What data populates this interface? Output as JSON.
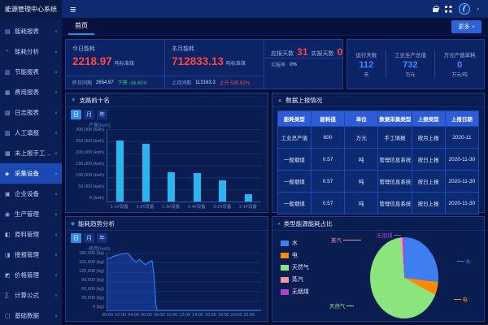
{
  "app": {
    "title": "能源管理中心系统"
  },
  "topbar": {
    "hamburger": "≡"
  },
  "tabbar": {
    "active_tab": "首页",
    "more_button": "更多"
  },
  "sidebar": {
    "chevron": "∨",
    "items": [
      {
        "label": "能耗报表",
        "icon": "energy-report-icon",
        "glyph": "▤",
        "active": false
      },
      {
        "label": "能耗分析",
        "icon": "energy-analysis-icon",
        "glyph": "◔",
        "active": false
      },
      {
        "label": "节能报表",
        "icon": "saving-report-icon",
        "glyph": "▥",
        "active": false
      },
      {
        "label": "费用报表",
        "icon": "cost-report-icon",
        "glyph": "▦",
        "active": false
      },
      {
        "label": "日志报表",
        "icon": "log-report-icon",
        "glyph": "▧",
        "active": false
      },
      {
        "label": "人工填报",
        "icon": "manual-fill-icon",
        "glyph": "▨",
        "active": false
      },
      {
        "label": "未上报手工录入",
        "icon": "manual-entry-icon",
        "glyph": "▩",
        "active": false
      },
      {
        "label": "采集设备",
        "icon": "collect-device-icon",
        "glyph": "◈",
        "active": true
      },
      {
        "label": "企业设备",
        "icon": "enterprise-device-icon",
        "glyph": "▣",
        "active": false
      },
      {
        "label": "生产管理",
        "icon": "production-icon",
        "glyph": "◉",
        "active": false
      },
      {
        "label": "原料管理",
        "icon": "material-icon",
        "glyph": "◧",
        "active": false
      },
      {
        "label": "接报管理",
        "icon": "report-manage-icon",
        "glyph": "◨",
        "active": false
      },
      {
        "label": "价格管理",
        "icon": "price-icon",
        "glyph": "◩",
        "active": false
      },
      {
        "label": "计算公式",
        "icon": "formula-icon",
        "glyph": "∑",
        "active": false
      },
      {
        "label": "基础数据",
        "icon": "base-data-icon",
        "glyph": "▢",
        "active": false
      }
    ]
  },
  "stats": {
    "today": {
      "label": "今日能耗",
      "value": "2218.97",
      "unit": "吨标准煤",
      "sub_label": "昨日同期",
      "sub_value": "2654.97",
      "trend_label": "下降 -16.42%"
    },
    "month": {
      "label": "本月能耗",
      "value": "712833.13",
      "unit": "吨标准煤",
      "sub_label": "上月同期",
      "sub_value": "112163.3",
      "trend_label": "上升 535.52%"
    },
    "days": {
      "due_label": "应报天数",
      "due_value": "31",
      "actual_label": "实报天数",
      "actual_value": "0",
      "rate_label": "实报率",
      "rate_value": "0%"
    },
    "right": [
      {
        "label": "运行天数",
        "value": "112",
        "unit": "天"
      },
      {
        "label": "工业生产总值",
        "value": "732",
        "unit": "万元"
      },
      {
        "label": "万元产值单耗",
        "value": "0",
        "unit": "万元/吨"
      }
    ]
  },
  "bar_chart": {
    "type": "bar",
    "title": "支路前十名",
    "tabs": [
      "日",
      "月",
      "年"
    ],
    "active_tab": "日",
    "axis_label": "产量(kwh)",
    "categories": [
      "1-1#设备",
      "1-2#设备",
      "1-3#设备",
      "1-4#设备",
      "2-2#设备",
      "2-1#设备"
    ],
    "values": [
      252000,
      238000,
      121000,
      119000,
      89000,
      29000
    ],
    "ylim": [
      0,
      300000
    ],
    "yticks": [
      "300,000 (kwh)",
      "250,000 (kwh)",
      "200,000 (kwh)",
      "150,000 (kwh)",
      "100,000 (kwh)",
      "50,000 (kwh)",
      "0 (kwh)"
    ],
    "bar_color": "#29b5f0"
  },
  "table": {
    "title": "数据上报情况",
    "headers": [
      "能耗类型",
      "能耗值",
      "单位",
      "数据采集类型",
      "上报类型",
      "上报日期"
    ],
    "rows": [
      [
        "工业总产值",
        "600",
        "万元",
        "手工填报",
        "按月上报",
        "2020-11"
      ],
      [
        "一般烟煤",
        "0.57",
        "吨",
        "管理信息系统",
        "按日上报",
        "2020-11-30"
      ],
      [
        "一般烟煤",
        "0.57",
        "吨",
        "管理信息系统",
        "按日上报",
        "2020-11-30"
      ],
      [
        "一般烟煤",
        "0.57",
        "吨",
        "管理信息系统",
        "按日上报",
        "2020-11-30"
      ]
    ]
  },
  "line_chart": {
    "type": "area",
    "title": "能耗趋势分析",
    "tabs": [
      "日",
      "月",
      "年"
    ],
    "active_tab": "日",
    "axis_label": "耗用(kwh)",
    "yticks": [
      "180,000 (kg)",
      "150,000 (kg)",
      "120,000 (kg)",
      "90,000 (kg)",
      "60,000 (kg)",
      "30,000 (kg)",
      "0 (kg)"
    ],
    "ylim": [
      0,
      180000
    ],
    "xticks": [
      "00:00",
      "02:00",
      "04:00",
      "06:00",
      "08:00",
      "10:00",
      "12:00",
      "14:00",
      "16:00",
      "18:00",
      "20:00",
      "22:00"
    ],
    "x_range_hours": [
      0,
      24
    ],
    "points": [
      [
        0,
        160000
      ],
      [
        0.5,
        164000
      ],
      [
        1,
        169000
      ],
      [
        1.5,
        172000
      ],
      [
        2,
        174000
      ],
      [
        2.5,
        177000
      ],
      [
        3,
        178000
      ],
      [
        3.5,
        172000
      ],
      [
        4,
        158000
      ],
      [
        4.5,
        151000
      ],
      [
        5,
        159000
      ],
      [
        5.5,
        150000
      ],
      [
        6,
        142000
      ],
      [
        6.5,
        151000
      ],
      [
        7,
        155000
      ],
      [
        7.3,
        110000
      ],
      [
        7.6,
        15000
      ],
      [
        7.8,
        0
      ],
      [
        24,
        0
      ]
    ],
    "line_color": "#2f7be8",
    "fill_color": "rgba(30,80,200,0.45)"
  },
  "pie_chart": {
    "type": "pie",
    "title": "类型能源能耗占比",
    "legend": [
      {
        "label": "水",
        "color": "#3f7ef0"
      },
      {
        "label": "电",
        "color": "#ff8a00"
      },
      {
        "label": "天然气",
        "color": "#8ae57d"
      },
      {
        "label": "蒸汽",
        "color": "#f293a6"
      },
      {
        "label": "无烟煤",
        "color": "#b13fd2"
      }
    ],
    "values": [
      27,
      6,
      65.5,
      0.8,
      0.7
    ]
  }
}
